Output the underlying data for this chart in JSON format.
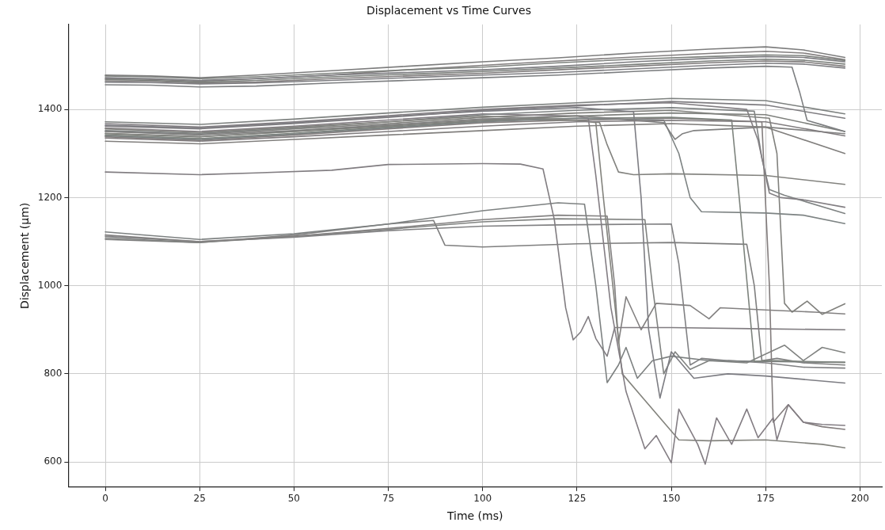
{
  "chart_data": {
    "type": "line",
    "title": "Displacement vs Time Curves",
    "xlabel": "Time (ms)",
    "ylabel": "Displacement (µm)",
    "xlim": [
      -9.8,
      205.8
    ],
    "ylim": [
      543,
      1593
    ],
    "xticks": [
      0,
      25,
      50,
      75,
      100,
      125,
      150,
      175,
      200
    ],
    "yticks": [
      600,
      800,
      1000,
      1200,
      1400
    ],
    "grid": true,
    "series": [
      {
        "color": "#7d7d7d",
        "x": [
          0,
          12,
          25,
          40,
          60,
          80,
          100,
          120,
          140,
          160,
          175,
          185,
          196
        ],
        "values": [
          1478,
          1476,
          1472,
          1478,
          1488,
          1498,
          1508,
          1517,
          1528,
          1537,
          1542,
          1535,
          1518
        ]
      },
      {
        "color": "#7d7d81",
        "x": [
          0,
          12,
          25,
          40,
          60,
          80,
          100,
          120,
          140,
          160,
          175,
          185,
          196
        ],
        "values": [
          1472,
          1470,
          1466,
          1470,
          1478,
          1484,
          1490,
          1498,
          1508,
          1516,
          1520,
          1518,
          1508
        ]
      },
      {
        "color": "#7d817d",
        "x": [
          0,
          12,
          25,
          40,
          60,
          80,
          100,
          120,
          140,
          160,
          175,
          185,
          196
        ],
        "values": [
          1468,
          1466,
          1462,
          1466,
          1474,
          1480,
          1486,
          1494,
          1502,
          1510,
          1514,
          1512,
          1503
        ]
      },
      {
        "color": "#817d7d",
        "x": [
          0,
          12,
          25,
          40,
          60,
          80,
          100,
          120,
          140,
          160,
          175,
          185,
          196
        ],
        "values": [
          1465,
          1464,
          1460,
          1462,
          1470,
          1476,
          1482,
          1490,
          1498,
          1506,
          1510,
          1508,
          1498
        ]
      },
      {
        "color": "#7f7f83",
        "x": [
          0,
          12,
          25,
          40,
          60,
          80,
          100,
          120,
          140,
          160,
          175,
          185,
          196
        ],
        "values": [
          1462,
          1461,
          1458,
          1460,
          1466,
          1472,
          1478,
          1484,
          1492,
          1500,
          1505,
          1503,
          1494
        ]
      },
      {
        "color": "#7f837f",
        "x": [
          0,
          12,
          25,
          40,
          60,
          80,
          100,
          120,
          140,
          160,
          175,
          185,
          196
        ],
        "values": [
          1476,
          1474,
          1470,
          1474,
          1482,
          1490,
          1496,
          1506,
          1514,
          1520,
          1524,
          1522,
          1511
        ]
      },
      {
        "color": "#837f7f",
        "x": [
          0,
          12,
          25,
          40,
          60,
          80,
          100,
          120,
          140,
          160,
          175,
          185,
          196
        ],
        "values": [
          1470,
          1468,
          1464,
          1470,
          1478,
          1490,
          1500,
          1510,
          1519,
          1527,
          1532,
          1528,
          1513
        ]
      },
      {
        "color": "#7d7f81",
        "x": [
          0,
          12,
          25,
          40,
          60,
          80,
          100,
          120,
          140,
          160,
          175,
          182,
          184,
          186,
          190,
          196
        ],
        "values": [
          1456,
          1455,
          1451,
          1453,
          1460,
          1466,
          1472,
          1478,
          1486,
          1494,
          1498,
          1496,
          1440,
          1375,
          1365,
          1350
        ]
      },
      {
        "color": "#7d817f",
        "x": [
          0,
          25,
          50,
          75,
          100,
          125,
          150,
          175,
          196
        ],
        "values": [
          1372,
          1366,
          1378,
          1392,
          1405,
          1415,
          1425,
          1420,
          1390
        ]
      },
      {
        "color": "#7f7d81",
        "x": [
          0,
          25,
          50,
          75,
          100,
          125,
          150,
          175,
          196
        ],
        "values": [
          1362,
          1356,
          1368,
          1382,
          1398,
          1408,
          1418,
          1410,
          1380
        ]
      },
      {
        "color": "#7f817d",
        "x": [
          0,
          25,
          50,
          75,
          100,
          125,
          150,
          175,
          196
        ],
        "values": [
          1345,
          1338,
          1350,
          1362,
          1375,
          1385,
          1392,
          1388,
          1350
        ]
      },
      {
        "color": "#817d7f",
        "x": [
          0,
          25,
          50,
          75,
          100,
          125,
          150,
          175,
          196
        ],
        "values": [
          1335,
          1328,
          1338,
          1350,
          1362,
          1372,
          1375,
          1372,
          1340
        ]
      },
      {
        "color": "#817f7d",
        "x": [
          0,
          25,
          50,
          75,
          100,
          125,
          150,
          175,
          196
        ],
        "values": [
          1328,
          1322,
          1332,
          1342,
          1352,
          1362,
          1368,
          1360,
          1300
        ]
      },
      {
        "color": "#808080",
        "x": [
          0,
          25,
          50,
          75,
          100,
          125,
          148,
          151,
          153,
          156,
          175,
          196
        ],
        "values": [
          1350,
          1342,
          1352,
          1365,
          1378,
          1386,
          1370,
          1332,
          1345,
          1352,
          1360,
          1345
        ]
      },
      {
        "color": "#83837f",
        "x": [
          0,
          25,
          50,
          75,
          100,
          125,
          131,
          133,
          136,
          140,
          150,
          175,
          196
        ],
        "values": [
          1356,
          1348,
          1360,
          1372,
          1385,
          1376,
          1370,
          1320,
          1258,
          1252,
          1254,
          1250,
          1230
        ]
      },
      {
        "color": "#837f83",
        "x": [
          0,
          25,
          50,
          75,
          100,
          125,
          150,
          170,
          173,
          176,
          179,
          185,
          196
        ],
        "values": [
          1368,
          1360,
          1372,
          1386,
          1400,
          1410,
          1415,
          1400,
          1330,
          1210,
          1200,
          1195,
          1178
        ]
      },
      {
        "color": "#7f8383",
        "x": [
          0,
          25,
          50,
          75,
          100,
          125,
          150,
          172,
          174,
          176,
          180,
          196
        ],
        "values": [
          1352,
          1346,
          1358,
          1372,
          1388,
          1398,
          1404,
          1396,
          1290,
          1218,
          1205,
          1164
        ]
      },
      {
        "color": "#7d8383",
        "x": [
          0,
          25,
          50,
          75,
          100,
          125,
          148,
          152,
          155,
          158,
          175,
          185,
          196
        ],
        "values": [
          1340,
          1332,
          1344,
          1358,
          1372,
          1380,
          1376,
          1300,
          1200,
          1168,
          1165,
          1160,
          1141
        ]
      },
      {
        "color": "#837d83",
        "x": [
          0,
          25,
          50,
          75,
          100,
          125,
          128,
          130,
          134,
          138,
          143,
          146,
          150,
          152,
          157,
          159,
          162,
          166,
          170,
          173,
          177,
          178,
          181,
          185,
          190,
          196
        ],
        "values": [
          1358,
          1350,
          1362,
          1376,
          1390,
          1385,
          1380,
          1250,
          950,
          760,
          630,
          660,
          598,
          720,
          640,
          595,
          700,
          640,
          720,
          655,
          700,
          650,
          730,
          690,
          685,
          683
        ]
      },
      {
        "color": "#83837d",
        "x": [
          0,
          25,
          50,
          75,
          100,
          125,
          130,
          132,
          137,
          143,
          152,
          160,
          175,
          190,
          196
        ],
        "values": [
          1346,
          1338,
          1350,
          1364,
          1378,
          1375,
          1370,
          1200,
          800,
          740,
          650,
          648,
          650,
          640,
          632
        ]
      },
      {
        "color": "#7d7d83",
        "x": [
          0,
          25,
          50,
          75,
          100,
          125,
          140,
          142,
          144,
          147,
          150,
          156,
          165,
          175,
          196
        ],
        "values": [
          1364,
          1358,
          1370,
          1384,
          1396,
          1404,
          1395,
          1200,
          900,
          745,
          850,
          790,
          800,
          795,
          779
        ]
      },
      {
        "color": "#7d837d",
        "x": [
          0,
          25,
          50,
          75,
          100,
          125,
          150,
          166,
          168,
          172,
          176,
          185,
          196
        ],
        "values": [
          1342,
          1334,
          1346,
          1360,
          1374,
          1380,
          1382,
          1376,
          1200,
          828,
          830,
          828,
          826
        ]
      },
      {
        "color": "#837d7d",
        "x": [
          0,
          25,
          50,
          75,
          100,
          125,
          150,
          174,
          176,
          177,
          181,
          185,
          190,
          196
        ],
        "values": [
          1338,
          1330,
          1342,
          1356,
          1370,
          1376,
          1380,
          1372,
          1000,
          690,
          730,
          690,
          680,
          674
        ]
      },
      {
        "color": "#81817d",
        "x": [
          0,
          25,
          50,
          75,
          100,
          125,
          150,
          176,
          178,
          180,
          182,
          186,
          190,
          196
        ],
        "values": [
          1350,
          1344,
          1356,
          1368,
          1382,
          1392,
          1398,
          1380,
          1300,
          960,
          940,
          965,
          935,
          959
        ]
      },
      {
        "color": "#817d81",
        "x": [
          0,
          25,
          40,
          60,
          75,
          100,
          110,
          116,
          119,
          122,
          124,
          126,
          128,
          130,
          133,
          135,
          140,
          150,
          175,
          196
        ],
        "values": [
          1258,
          1252,
          1256,
          1262,
          1275,
          1277,
          1276,
          1265,
          1150,
          950,
          877,
          895,
          930,
          880,
          840,
          905,
          905,
          905,
          902,
          900
        ]
      },
      {
        "color": "#7d8181",
        "x": [
          0,
          25,
          50,
          75,
          100,
          120,
          127,
          130,
          133,
          136,
          138,
          141,
          145,
          150,
          160,
          175,
          196
        ],
        "values": [
          1122,
          1105,
          1118,
          1140,
          1170,
          1188,
          1185,
          1000,
          780,
          820,
          860,
          790,
          830,
          840,
          830,
          828,
          826
        ]
      },
      {
        "color": "#838181",
        "x": [
          0,
          25,
          50,
          75,
          100,
          120,
          133,
          135,
          136,
          138,
          142,
          146,
          155,
          160,
          163,
          175,
          188,
          196
        ],
        "values": [
          1115,
          1100,
          1112,
          1130,
          1150,
          1160,
          1158,
          1000,
          870,
          975,
          900,
          960,
          955,
          925,
          950,
          945,
          940,
          936
        ]
      },
      {
        "color": "#818381",
        "x": [
          0,
          25,
          50,
          75,
          100,
          120,
          143,
          145,
          148,
          151,
          155,
          160,
          170,
          180,
          185,
          190,
          196
        ],
        "values": [
          1108,
          1098,
          1112,
          1128,
          1145,
          1152,
          1150,
          1000,
          800,
          850,
          810,
          830,
          825,
          865,
          830,
          860,
          848
        ]
      },
      {
        "color": "#818183",
        "x": [
          0,
          25,
          50,
          75,
          100,
          120,
          150,
          152,
          155,
          158,
          165,
          175,
          185,
          196
        ],
        "values": [
          1112,
          1100,
          1110,
          1125,
          1135,
          1138,
          1140,
          1050,
          820,
          835,
          830,
          825,
          815,
          813
        ]
      },
      {
        "color": "#7f7f7f",
        "x": [
          0,
          25,
          50,
          75,
          87,
          90,
          100,
          125,
          150,
          170,
          172,
          174,
          178,
          185,
          196
        ],
        "values": [
          1105,
          1098,
          1115,
          1140,
          1148,
          1092,
          1088,
          1095,
          1098,
          1094,
          1000,
          830,
          835,
          825,
          820
        ]
      }
    ]
  }
}
